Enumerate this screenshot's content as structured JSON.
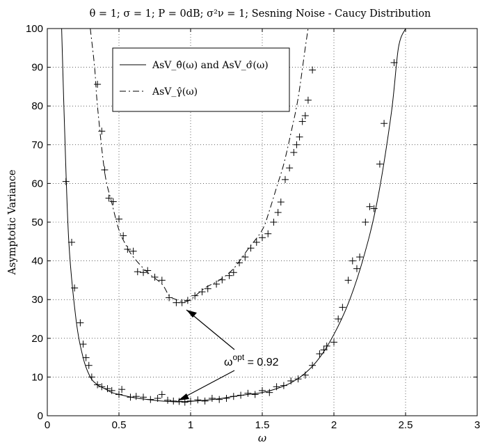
{
  "chart_data": {
    "type": "line",
    "title": "θ = 1; σ = 1; P = 0dB; σ²ν = 1; Sesning Noise - Caucy Distribution",
    "xlabel": "ω",
    "ylabel": "Asymptotic Variance",
    "xlim": [
      0,
      3
    ],
    "ylim": [
      0,
      100
    ],
    "xticks": [
      "0",
      "0.5",
      "1",
      "1.5",
      "2",
      "2.5",
      "3"
    ],
    "yticks": [
      "0",
      "10",
      "20",
      "30",
      "40",
      "50",
      "60",
      "70",
      "80",
      "90",
      "100"
    ],
    "grid": "dotted",
    "legend_position": "top-left",
    "series": [
      {
        "name": "AsV_θ̂(ω) and AsV_σ̂(ω)",
        "style": "solid",
        "color": "#000000",
        "x": [
          0.1,
          0.12,
          0.15,
          0.2,
          0.25,
          0.3,
          0.35,
          0.4,
          0.45,
          0.5,
          0.6,
          0.7,
          0.8,
          0.9,
          0.92,
          1.0,
          1.1,
          1.2,
          1.3,
          1.4,
          1.5,
          1.6,
          1.7,
          1.8,
          1.9,
          2.0,
          2.1,
          2.2,
          2.3,
          2.4,
          2.45,
          2.5
        ],
        "y": [
          100,
          75,
          45,
          25,
          15,
          10,
          8,
          7,
          6,
          5.5,
          4.7,
          4.2,
          3.8,
          3.6,
          3.6,
          3.7,
          4.0,
          4.4,
          5.0,
          5.5,
          6.0,
          7.0,
          8.5,
          11,
          15,
          21,
          29,
          40,
          55,
          78,
          95,
          100
        ]
      },
      {
        "name": "AsV_γ̂(ω)",
        "style": "dash-dot",
        "color": "#000000",
        "x": [
          0.3,
          0.33,
          0.35,
          0.4,
          0.45,
          0.5,
          0.55,
          0.6,
          0.7,
          0.8,
          0.85,
          0.9,
          0.95,
          1.0,
          1.1,
          1.2,
          1.3,
          1.4,
          1.5,
          1.55,
          1.6,
          1.65,
          1.7,
          1.75,
          1.8,
          1.82
        ],
        "y": [
          100,
          90,
          80,
          63,
          55,
          48,
          44,
          41,
          37,
          34,
          31,
          30,
          29.5,
          30,
          33,
          35,
          38,
          43,
          48,
          53,
          59,
          65,
          73,
          82,
          95,
          100
        ]
      }
    ],
    "markers": {
      "symbol": "+",
      "points": [
        [
          0.13,
          60.5
        ],
        [
          0.17,
          44.8
        ],
        [
          0.19,
          33
        ],
        [
          0.23,
          24
        ],
        [
          0.25,
          18.5
        ],
        [
          0.27,
          15
        ],
        [
          0.29,
          13
        ],
        [
          0.31,
          10
        ],
        [
          0.35,
          8
        ],
        [
          0.38,
          7.5
        ],
        [
          0.42,
          7
        ],
        [
          0.45,
          6.5
        ],
        [
          0.5,
          5.5
        ],
        [
          0.52,
          6.8
        ],
        [
          0.58,
          4.8
        ],
        [
          0.62,
          5
        ],
        [
          0.67,
          4.8
        ],
        [
          0.72,
          4.2
        ],
        [
          0.77,
          4.5
        ],
        [
          0.8,
          5.5
        ],
        [
          0.84,
          4
        ],
        [
          0.88,
          3.8
        ],
        [
          0.92,
          3.7
        ],
        [
          0.96,
          3.5
        ],
        [
          1.0,
          3.8
        ],
        [
          1.05,
          4.1
        ],
        [
          1.1,
          3.8
        ],
        [
          1.15,
          4.5
        ],
        [
          1.2,
          4.2
        ],
        [
          1.25,
          4.5
        ],
        [
          1.3,
          5
        ],
        [
          1.35,
          5.3
        ],
        [
          1.4,
          5.8
        ],
        [
          1.45,
          5.5
        ],
        [
          1.5,
          6.5
        ],
        [
          1.55,
          6
        ],
        [
          1.6,
          7.5
        ],
        [
          1.65,
          7.8
        ],
        [
          1.7,
          9
        ],
        [
          1.75,
          9.5
        ],
        [
          1.8,
          10.5
        ],
        [
          1.85,
          13
        ],
        [
          1.9,
          16
        ],
        [
          1.93,
          17
        ],
        [
          1.95,
          18
        ],
        [
          2.0,
          19
        ],
        [
          2.03,
          25
        ],
        [
          2.06,
          28
        ],
        [
          2.1,
          35
        ],
        [
          2.13,
          40
        ],
        [
          2.16,
          38
        ],
        [
          2.18,
          41
        ],
        [
          2.22,
          50
        ],
        [
          2.25,
          54
        ],
        [
          2.28,
          53.5
        ],
        [
          2.32,
          65
        ],
        [
          2.35,
          75.5
        ],
        [
          2.42,
          91.2
        ],
        [
          0.35,
          85.6
        ],
        [
          0.38,
          73.5
        ],
        [
          0.4,
          63.5
        ],
        [
          0.43,
          56.2
        ],
        [
          0.46,
          55.3
        ],
        [
          0.5,
          50.8
        ],
        [
          0.53,
          46.5
        ],
        [
          0.56,
          43
        ],
        [
          0.6,
          42.5
        ],
        [
          0.63,
          37.2
        ],
        [
          0.67,
          37
        ],
        [
          0.7,
          37.5
        ],
        [
          0.75,
          35.8
        ],
        [
          0.8,
          35
        ],
        [
          0.85,
          30.5
        ],
        [
          0.9,
          29.2
        ],
        [
          0.94,
          29.2
        ],
        [
          0.98,
          29.8
        ],
        [
          1.03,
          31
        ],
        [
          1.08,
          32
        ],
        [
          1.12,
          32.8
        ],
        [
          1.18,
          34
        ],
        [
          1.22,
          35.1
        ],
        [
          1.27,
          36.2
        ],
        [
          1.3,
          37
        ],
        [
          1.34,
          39.5
        ],
        [
          1.38,
          41
        ],
        [
          1.42,
          43.3
        ],
        [
          1.46,
          44.8
        ],
        [
          1.5,
          46
        ],
        [
          1.54,
          47
        ],
        [
          1.58,
          50
        ],
        [
          1.61,
          52.5
        ],
        [
          1.63,
          55.2
        ],
        [
          1.66,
          61
        ],
        [
          1.69,
          64
        ],
        [
          1.72,
          68
        ],
        [
          1.74,
          70
        ],
        [
          1.76,
          72
        ],
        [
          1.78,
          76
        ],
        [
          1.8,
          77.5
        ],
        [
          1.82,
          81.5
        ],
        [
          1.85,
          89.3
        ]
      ]
    },
    "annotation": {
      "text_prefix": "ω",
      "text_sup": "opt",
      "text_suffix": " = 0.92",
      "arrow_targets": [
        [
          0.95,
          29
        ],
        [
          0.92,
          3.7
        ]
      ]
    }
  }
}
